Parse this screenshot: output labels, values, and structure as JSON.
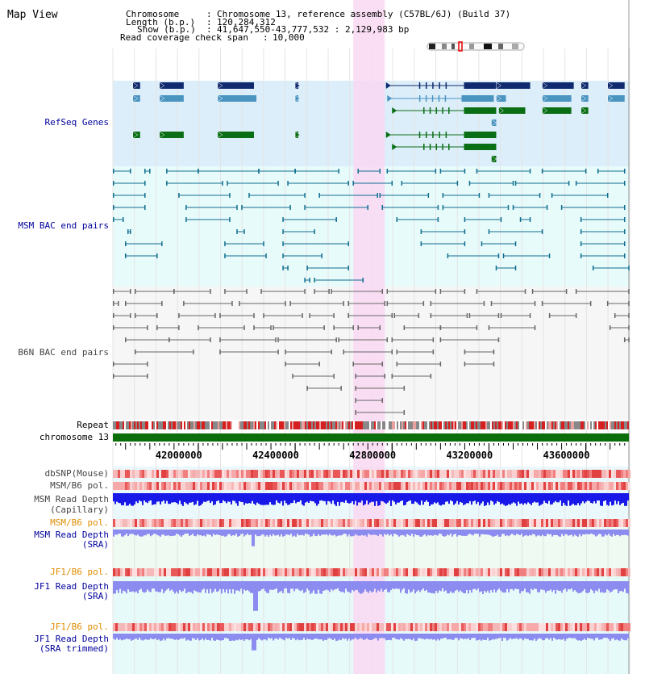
{
  "panel_title": "Map View",
  "info": {
    "chromosome_key": "Chromosome",
    "chromosome_val": "Chromosome 13, reference assembly (C57BL/6J) (Build 37)",
    "length_key": "Length (b.p.)",
    "length_val": "120,284,312",
    "show_key": "Show (b.p.)",
    "show_val": "41,647,550-43,777,532 : 2,129,983 bp",
    "coverage_key": "Read coverage check span",
    "coverage_val": "10,000",
    "sep": ":"
  },
  "colors": {
    "refseq_bg": "#dceefa",
    "msm_bac_bg": "#e8fbfb",
    "b6n_bac_bg": "#f6f6f6",
    "highlight": "#f9d8f2",
    "gene_dark": "#0f2a6e",
    "gene_mid": "#4a94c0",
    "gene_green": "#0a6e14",
    "msm_bac": "#0f6e8f",
    "b6n_bac": "#666666",
    "chromosome_bar": "#0a6e0a",
    "read_depth": "#1818e8",
    "sra_depth": "#8c8cf0",
    "snp": "#f08080",
    "label_blue": "#00009c",
    "label_orange": "#e08c00"
  },
  "tracks": {
    "refseq": "RefSeq Genes",
    "msm_bac": "MSM BAC end pairs",
    "b6n_bac": "B6N BAC end pairs",
    "repeat": "Repeat",
    "chromosome": "chromosome 13",
    "dbsnp": "dbSNP(Mouse)",
    "msm_b6_pol": "MSM/B6 pol.",
    "msm_depth_cap_1": "MSM Read Depth",
    "msm_depth_cap_2": "(Capillary)",
    "msm_b6_pol_sra": "MSM/B6 pol.",
    "msm_depth_sra_1": "MSM Read Depth",
    "msm_depth_sra_2": "(SRA)",
    "jf1_b6_pol": "JF1/B6 pol.",
    "jf1_depth_1": "JF1 Read Depth",
    "jf1_depth_2": "(SRA)",
    "jf1_b6_pol_trim": "JF1/B6 pol.",
    "jf1_trim_1": "JF1 Read Depth",
    "jf1_trim_2": "(SRA trimmed)"
  },
  "axis": {
    "ticks": [
      "42000000",
      "42400000",
      "42800000",
      "43200000",
      "43600000"
    ],
    "values": [
      42000000,
      42400000,
      42800000,
      43200000,
      43600000
    ],
    "range": [
      41647550,
      43777532
    ]
  },
  "chart_data": {
    "type": "genome browser",
    "region": [
      41647550,
      43777532
    ],
    "highlight_region": [
      42640000,
      42770000
    ],
    "refseq_genes": [
      {
        "row": 0,
        "start": 41730000,
        "end": 41760000,
        "color": "dark"
      },
      {
        "row": 0,
        "start": 41840000,
        "end": 41940000,
        "color": "dark"
      },
      {
        "row": 0,
        "start": 42080000,
        "end": 42230000,
        "color": "dark"
      },
      {
        "row": 0,
        "start": 42400000,
        "end": 42410000,
        "color": "dark"
      },
      {
        "row": 0,
        "start": 42775000,
        "end": 43230000,
        "color": "dark"
      },
      {
        "row": 0,
        "start": 43230000,
        "end": 43370000,
        "color": "dark"
      },
      {
        "row": 0,
        "start": 43420000,
        "end": 43550000,
        "color": "dark"
      },
      {
        "row": 0,
        "start": 43580000,
        "end": 43610000,
        "color": "dark"
      },
      {
        "row": 0,
        "start": 43690000,
        "end": 43760000,
        "color": "dark"
      },
      {
        "row": 1,
        "start": 41730000,
        "end": 41760000,
        "color": "mid"
      },
      {
        "row": 1,
        "start": 41840000,
        "end": 41940000,
        "color": "mid"
      },
      {
        "row": 1,
        "start": 42080000,
        "end": 42240000,
        "color": "mid"
      },
      {
        "row": 1,
        "start": 42400000,
        "end": 42410000,
        "color": "mid"
      },
      {
        "row": 1,
        "start": 42780000,
        "end": 43220000,
        "color": "mid"
      },
      {
        "row": 1,
        "start": 43230000,
        "end": 43270000,
        "color": "mid"
      },
      {
        "row": 1,
        "start": 43420000,
        "end": 43540000,
        "color": "mid"
      },
      {
        "row": 1,
        "start": 43580000,
        "end": 43610000,
        "color": "mid"
      },
      {
        "row": 1,
        "start": 43690000,
        "end": 43760000,
        "color": "mid"
      },
      {
        "row": 2,
        "start": 42800000,
        "end": 43230000,
        "color": "green"
      },
      {
        "row": 2,
        "start": 43240000,
        "end": 43350000,
        "color": "green"
      },
      {
        "row": 2,
        "start": 43420000,
        "end": 43540000,
        "color": "green"
      },
      {
        "row": 2,
        "start": 43580000,
        "end": 43610000,
        "color": "green"
      },
      {
        "row": 3,
        "start": 43210000,
        "end": 43230000,
        "color": "mid"
      },
      {
        "row": 4,
        "start": 41730000,
        "end": 41760000,
        "color": "green"
      },
      {
        "row": 4,
        "start": 41840000,
        "end": 41940000,
        "color": "green"
      },
      {
        "row": 4,
        "start": 42080000,
        "end": 42230000,
        "color": "green"
      },
      {
        "row": 4,
        "start": 42400000,
        "end": 42410000,
        "color": "green"
      },
      {
        "row": 4,
        "start": 42775000,
        "end": 43230000,
        "color": "green"
      },
      {
        "row": 5,
        "start": 42800000,
        "end": 43230000,
        "color": "green"
      },
      {
        "row": 6,
        "start": 43210000,
        "end": 43230000,
        "color": "green"
      }
    ],
    "msm_bac_pairs": [
      {
        "row": 0,
        "start": 41650000,
        "end": 41720000
      },
      {
        "row": 0,
        "start": 41780000,
        "end": 41800000
      },
      {
        "row": 0,
        "start": 41870000,
        "end": 42000000
      },
      {
        "row": 0,
        "start": 42000000,
        "end": 42250000
      },
      {
        "row": 0,
        "start": 42250000,
        "end": 42400000
      },
      {
        "row": 0,
        "start": 42400000,
        "end": 42580000
      },
      {
        "row": 0,
        "start": 42660000,
        "end": 42750000
      },
      {
        "row": 0,
        "start": 42780000,
        "end": 42980000
      },
      {
        "row": 0,
        "start": 43000000,
        "end": 43100000
      },
      {
        "row": 0,
        "start": 43150000,
        "end": 43370000
      },
      {
        "row": 0,
        "start": 43420000,
        "end": 43600000
      },
      {
        "row": 0,
        "start": 43650000,
        "end": 43760000
      },
      {
        "row": 1,
        "start": 41650000,
        "end": 41780000
      },
      {
        "row": 1,
        "start": 41870000,
        "end": 42100000
      },
      {
        "row": 1,
        "start": 42120000,
        "end": 42330000
      },
      {
        "row": 1,
        "start": 42370000,
        "end": 42620000
      },
      {
        "row": 1,
        "start": 42640000,
        "end": 42800000
      },
      {
        "row": 1,
        "start": 42840000,
        "end": 43070000
      },
      {
        "row": 1,
        "start": 43120000,
        "end": 43300000
      },
      {
        "row": 1,
        "start": 43310000,
        "end": 43530000
      },
      {
        "row": 1,
        "start": 43560000,
        "end": 43760000
      },
      {
        "row": 2,
        "start": 41650000,
        "end": 41780000
      },
      {
        "row": 2,
        "start": 41920000,
        "end": 42130000
      },
      {
        "row": 2,
        "start": 42210000,
        "end": 42440000
      },
      {
        "row": 2,
        "start": 42500000,
        "end": 42740000
      },
      {
        "row": 2,
        "start": 42750000,
        "end": 42950000
      },
      {
        "row": 2,
        "start": 43010000,
        "end": 43160000
      },
      {
        "row": 2,
        "start": 43200000,
        "end": 43410000
      },
      {
        "row": 2,
        "start": 43460000,
        "end": 43690000
      },
      {
        "row": 3,
        "start": 41650000,
        "end": 41780000
      },
      {
        "row": 3,
        "start": 41950000,
        "end": 42160000
      },
      {
        "row": 3,
        "start": 42180000,
        "end": 42380000
      },
      {
        "row": 3,
        "start": 42440000,
        "end": 42700000
      },
      {
        "row": 3,
        "start": 42760000,
        "end": 42990000
      },
      {
        "row": 3,
        "start": 43010000,
        "end": 43280000
      },
      {
        "row": 3,
        "start": 43300000,
        "end": 43440000
      },
      {
        "row": 3,
        "start": 43500000,
        "end": 43760000
      },
      {
        "row": 4,
        "start": 41650000,
        "end": 41690000
      },
      {
        "row": 4,
        "start": 41950000,
        "end": 42130000
      },
      {
        "row": 4,
        "start": 42350000,
        "end": 42570000
      },
      {
        "row": 4,
        "start": 42820000,
        "end": 42990000
      },
      {
        "row": 4,
        "start": 43100000,
        "end": 43250000
      },
      {
        "row": 4,
        "start": 43330000,
        "end": 43370000
      },
      {
        "row": 4,
        "start": 43580000,
        "end": 43760000
      },
      {
        "row": 5,
        "start": 41710000,
        "end": 41720000
      },
      {
        "row": 5,
        "start": 42160000,
        "end": 42190000
      },
      {
        "row": 5,
        "start": 42350000,
        "end": 42480000
      },
      {
        "row": 5,
        "start": 42920000,
        "end": 43100000
      },
      {
        "row": 5,
        "start": 43200000,
        "end": 43420000
      },
      {
        "row": 5,
        "start": 43580000,
        "end": 43760000
      },
      {
        "row": 6,
        "start": 41700000,
        "end": 41850000
      },
      {
        "row": 6,
        "start": 42110000,
        "end": 42270000
      },
      {
        "row": 6,
        "start": 42350000,
        "end": 42620000
      },
      {
        "row": 6,
        "start": 42920000,
        "end": 43100000
      },
      {
        "row": 6,
        "start": 43170000,
        "end": 43310000
      },
      {
        "row": 6,
        "start": 43580000,
        "end": 43760000
      },
      {
        "row": 7,
        "start": 41700000,
        "end": 41830000
      },
      {
        "row": 7,
        "start": 42110000,
        "end": 42280000
      },
      {
        "row": 7,
        "start": 42350000,
        "end": 42510000
      },
      {
        "row": 7,
        "start": 43030000,
        "end": 43240000
      },
      {
        "row": 7,
        "start": 43260000,
        "end": 43450000
      },
      {
        "row": 7,
        "start": 43580000,
        "end": 43760000
      },
      {
        "row": 8,
        "start": 42350000,
        "end": 42370000
      },
      {
        "row": 8,
        "start": 42450000,
        "end": 42620000
      },
      {
        "row": 8,
        "start": 43230000,
        "end": 43310000
      },
      {
        "row": 8,
        "start": 43630000,
        "end": 43777532
      },
      {
        "row": 9,
        "start": 42440000,
        "end": 42460000
      },
      {
        "row": 9,
        "start": 42480000,
        "end": 42680000
      }
    ],
    "b6n_bac_pairs": [
      {
        "row": 0,
        "start": 41650000,
        "end": 41720000
      },
      {
        "row": 0,
        "start": 41740000,
        "end": 41900000
      },
      {
        "row": 0,
        "start": 41900000,
        "end": 42050000
      },
      {
        "row": 0,
        "start": 42110000,
        "end": 42200000
      },
      {
        "row": 0,
        "start": 42260000,
        "end": 42440000
      },
      {
        "row": 0,
        "start": 42480000,
        "end": 42540000
      },
      {
        "row": 0,
        "start": 42550000,
        "end": 42760000
      },
      {
        "row": 0,
        "start": 42780000,
        "end": 42980000
      },
      {
        "row": 0,
        "start": 43000000,
        "end": 43100000
      },
      {
        "row": 0,
        "start": 43150000,
        "end": 43350000
      },
      {
        "row": 0,
        "start": 43380000,
        "end": 43520000
      },
      {
        "row": 0,
        "start": 43560000,
        "end": 43777532
      },
      {
        "row": 1,
        "start": 41650000,
        "end": 41670000
      },
      {
        "row": 1,
        "start": 41700000,
        "end": 41850000
      },
      {
        "row": 1,
        "start": 41940000,
        "end": 42140000
      },
      {
        "row": 1,
        "start": 42170000,
        "end": 42360000
      },
      {
        "row": 1,
        "start": 42380000,
        "end": 42600000
      },
      {
        "row": 1,
        "start": 42620000,
        "end": 42770000
      },
      {
        "row": 1,
        "start": 42780000,
        "end": 42930000
      },
      {
        "row": 1,
        "start": 42960000,
        "end": 43180000
      },
      {
        "row": 1,
        "start": 43210000,
        "end": 43390000
      },
      {
        "row": 1,
        "start": 43420000,
        "end": 43620000
      },
      {
        "row": 1,
        "start": 43690000,
        "end": 43777532
      },
      {
        "row": 2,
        "start": 41650000,
        "end": 41720000
      },
      {
        "row": 2,
        "start": 41740000,
        "end": 41830000
      },
      {
        "row": 2,
        "start": 41920000,
        "end": 42070000
      },
      {
        "row": 2,
        "start": 42090000,
        "end": 42230000
      },
      {
        "row": 2,
        "start": 42270000,
        "end": 42430000
      },
      {
        "row": 2,
        "start": 42460000,
        "end": 42560000
      },
      {
        "row": 2,
        "start": 42620000,
        "end": 42800000
      },
      {
        "row": 2,
        "start": 42810000,
        "end": 42910000
      },
      {
        "row": 2,
        "start": 42960000,
        "end": 43110000
      },
      {
        "row": 2,
        "start": 43120000,
        "end": 43240000
      },
      {
        "row": 2,
        "start": 43250000,
        "end": 43370000
      },
      {
        "row": 2,
        "start": 43450000,
        "end": 43560000
      },
      {
        "row": 2,
        "start": 43720000,
        "end": 43777532
      },
      {
        "row": 3,
        "start": 41650000,
        "end": 41790000
      },
      {
        "row": 3,
        "start": 41830000,
        "end": 41920000
      },
      {
        "row": 3,
        "start": 42000000,
        "end": 42190000
      },
      {
        "row": 3,
        "start": 42230000,
        "end": 42300000
      },
      {
        "row": 3,
        "start": 42310000,
        "end": 42520000
      },
      {
        "row": 3,
        "start": 42560000,
        "end": 42640000
      },
      {
        "row": 3,
        "start": 42660000,
        "end": 42750000
      },
      {
        "row": 3,
        "start": 42850000,
        "end": 43000000
      },
      {
        "row": 3,
        "start": 43000000,
        "end": 43150000
      },
      {
        "row": 3,
        "start": 43200000,
        "end": 43390000
      },
      {
        "row": 3,
        "start": 43700000,
        "end": 43777532
      },
      {
        "row": 4,
        "start": 41700000,
        "end": 41880000
      },
      {
        "row": 4,
        "start": 41880000,
        "end": 42050000
      },
      {
        "row": 4,
        "start": 42090000,
        "end": 42320000
      },
      {
        "row": 4,
        "start": 42330000,
        "end": 42570000
      },
      {
        "row": 4,
        "start": 42580000,
        "end": 42780000
      },
      {
        "row": 4,
        "start": 42800000,
        "end": 42970000
      },
      {
        "row": 4,
        "start": 43000000,
        "end": 43240000
      },
      {
        "row": 4,
        "start": 43760000,
        "end": 43777532
      },
      {
        "row": 5,
        "start": 41740000,
        "end": 41980000
      },
      {
        "row": 5,
        "start": 42090000,
        "end": 42330000
      },
      {
        "row": 5,
        "start": 42360000,
        "end": 42550000
      },
      {
        "row": 5,
        "start": 42600000,
        "end": 42800000
      },
      {
        "row": 5,
        "start": 42820000,
        "end": 42970000
      },
      {
        "row": 5,
        "start": 43100000,
        "end": 43220000
      },
      {
        "row": 6,
        "start": 41650000,
        "end": 41790000
      },
      {
        "row": 6,
        "start": 42360000,
        "end": 42500000
      },
      {
        "row": 6,
        "start": 42640000,
        "end": 42760000
      },
      {
        "row": 6,
        "start": 42820000,
        "end": 43000000
      },
      {
        "row": 6,
        "start": 43100000,
        "end": 43220000
      },
      {
        "row": 7,
        "start": 41650000,
        "end": 41790000
      },
      {
        "row": 7,
        "start": 42390000,
        "end": 42560000
      },
      {
        "row": 7,
        "start": 42650000,
        "end": 42770000
      },
      {
        "row": 7,
        "start": 42800000,
        "end": 42960000
      },
      {
        "row": 8,
        "start": 42450000,
        "end": 42590000
      },
      {
        "row": 8,
        "start": 42650000,
        "end": 42850000
      },
      {
        "row": 9,
        "start": 42650000,
        "end": 42760000
      },
      {
        "row": 10,
        "start": 42650000,
        "end": 42850000
      }
    ]
  }
}
